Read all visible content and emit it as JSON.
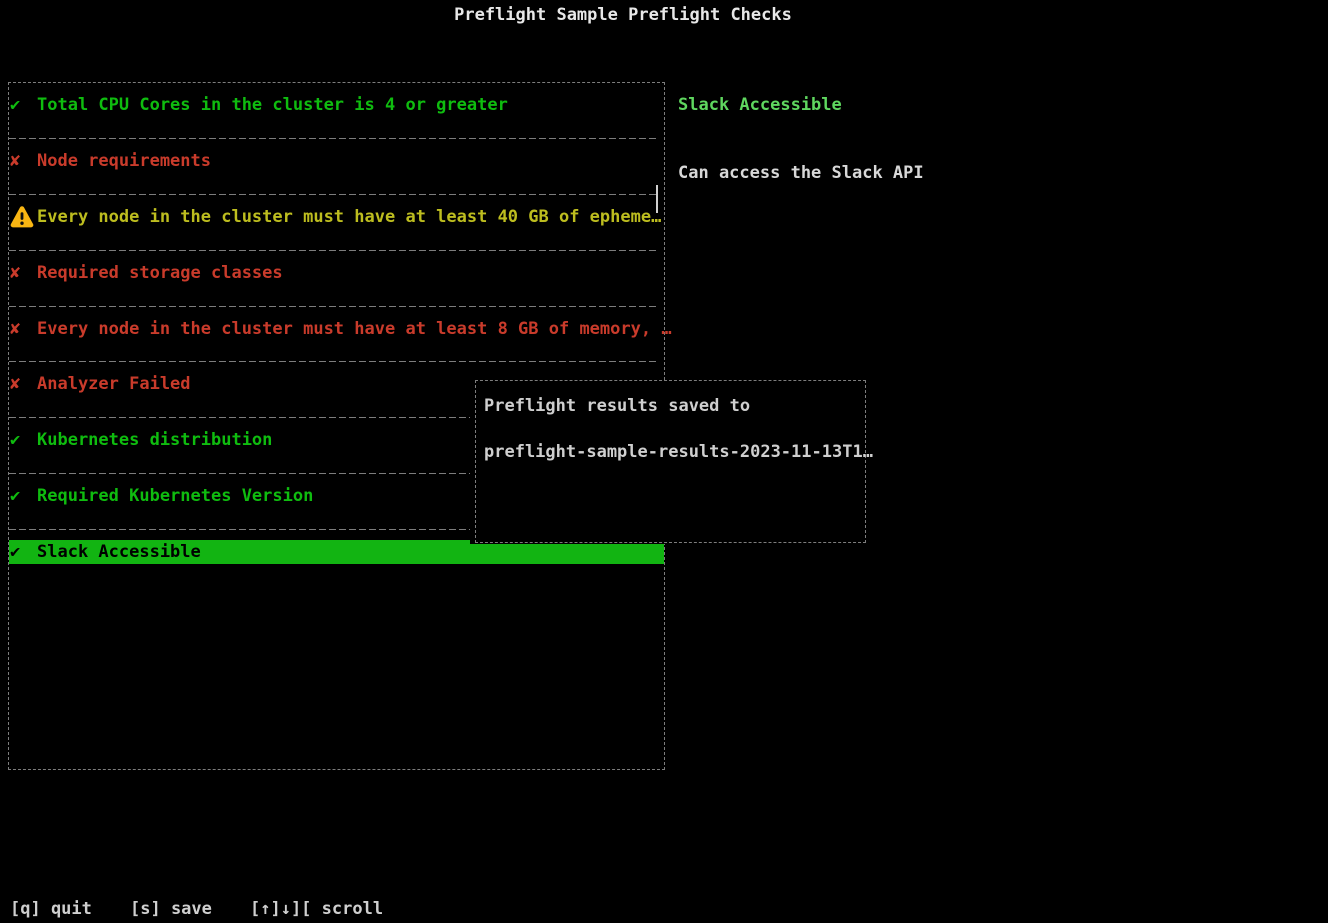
{
  "title": "Preflight Sample Preflight Checks",
  "colors": {
    "green": "#0fbc0f",
    "green-bright": "#5fd75f",
    "green-selected-bg": "#12b412",
    "red": "#c93b2b",
    "yellow": "#bdbd1f",
    "border": "#7d7d7d"
  },
  "checklist": {
    "items": [
      {
        "icon": "checkmark-icon",
        "status": "pass",
        "label": "Total CPU Cores in the cluster is 4 or greater",
        "selected": false
      },
      {
        "icon": "x-mark-icon",
        "status": "fail",
        "label": "Node requirements",
        "selected": false
      },
      {
        "icon": "warning-icon",
        "status": "warn",
        "label": "Every node in the cluster must have at least 40 GB of epheme…",
        "selected": false
      },
      {
        "icon": "x-mark-icon",
        "status": "fail",
        "label": "Required storage classes",
        "selected": false
      },
      {
        "icon": "x-mark-icon",
        "status": "fail",
        "label": "Every node in the cluster must have at least 8 GB of memory, …",
        "selected": false
      },
      {
        "icon": "x-mark-icon",
        "status": "fail",
        "label": "Analyzer Failed",
        "selected": false
      },
      {
        "icon": "checkmark-icon",
        "status": "pass",
        "label": "Kubernetes distribution",
        "selected": false
      },
      {
        "icon": "checkmark-icon",
        "status": "pass",
        "label": "Required Kubernetes Version",
        "selected": false
      },
      {
        "icon": "checkmark-icon",
        "status": "pass",
        "label": "Slack Accessible",
        "selected": true
      }
    ]
  },
  "detail": {
    "title": "Slack Accessible",
    "body": "Can access the Slack API"
  },
  "dialog": {
    "line1": "Preflight results saved to",
    "line2": "preflight-sample-results-2023-11-13T1…"
  },
  "footer": {
    "quit": "[q] quit",
    "save": "[s] save",
    "scroll": "[↑]↓][ scroll"
  }
}
